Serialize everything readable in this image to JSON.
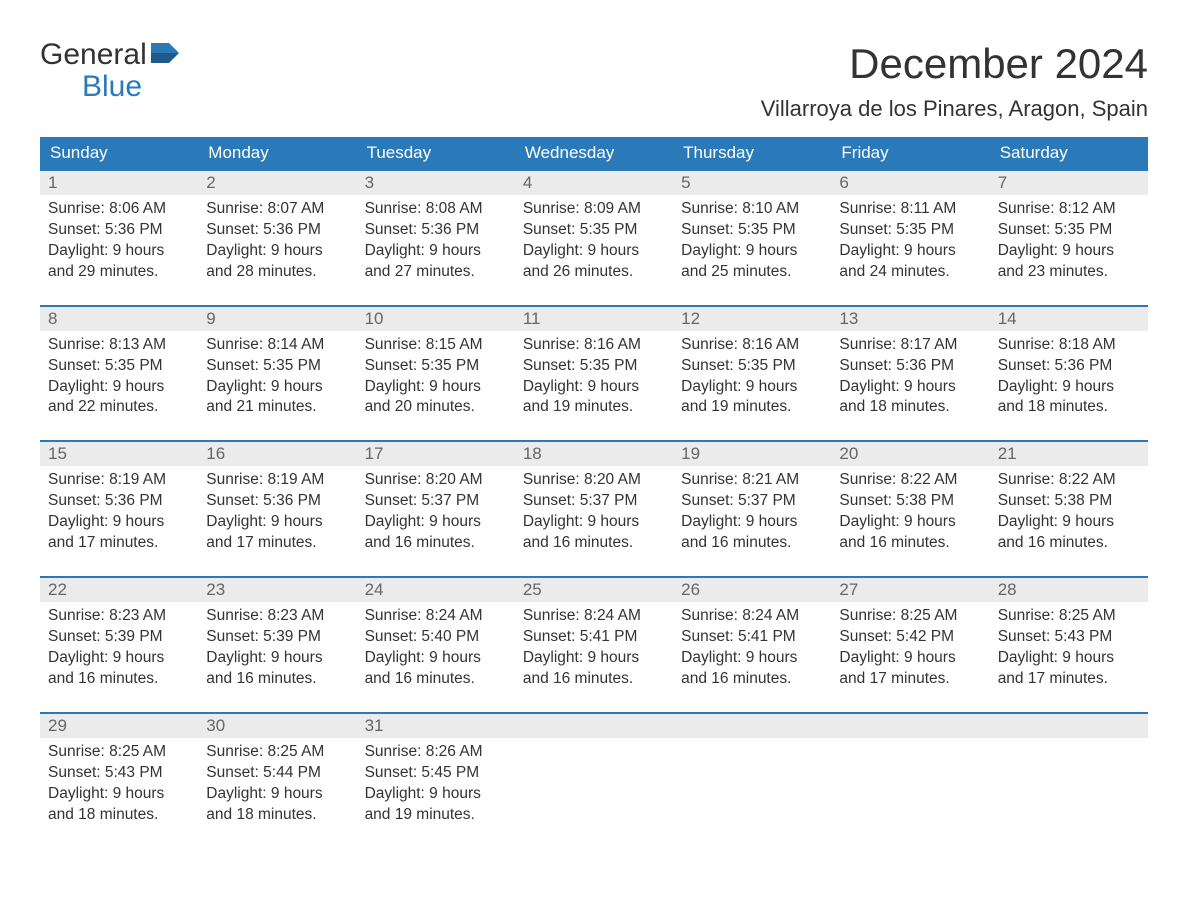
{
  "logo": {
    "text1": "General",
    "text2": "Blue"
  },
  "title": "December 2024",
  "location": "Villarroya de los Pinares, Aragon, Spain",
  "colors": {
    "header_bg": "#2a7ab9",
    "header_text": "#ffffff",
    "day_number_bg": "#ebebeb",
    "day_number_text": "#666666",
    "body_text": "#333333",
    "border": "#2a7ab9"
  },
  "daysOfWeek": [
    "Sunday",
    "Monday",
    "Tuesday",
    "Wednesday",
    "Thursday",
    "Friday",
    "Saturday"
  ],
  "weeks": [
    [
      {
        "day": "1",
        "sunrise": "Sunrise: 8:06 AM",
        "sunset": "Sunset: 5:36 PM",
        "daylight1": "Daylight: 9 hours",
        "daylight2": "and 29 minutes."
      },
      {
        "day": "2",
        "sunrise": "Sunrise: 8:07 AM",
        "sunset": "Sunset: 5:36 PM",
        "daylight1": "Daylight: 9 hours",
        "daylight2": "and 28 minutes."
      },
      {
        "day": "3",
        "sunrise": "Sunrise: 8:08 AM",
        "sunset": "Sunset: 5:36 PM",
        "daylight1": "Daylight: 9 hours",
        "daylight2": "and 27 minutes."
      },
      {
        "day": "4",
        "sunrise": "Sunrise: 8:09 AM",
        "sunset": "Sunset: 5:35 PM",
        "daylight1": "Daylight: 9 hours",
        "daylight2": "and 26 minutes."
      },
      {
        "day": "5",
        "sunrise": "Sunrise: 8:10 AM",
        "sunset": "Sunset: 5:35 PM",
        "daylight1": "Daylight: 9 hours",
        "daylight2": "and 25 minutes."
      },
      {
        "day": "6",
        "sunrise": "Sunrise: 8:11 AM",
        "sunset": "Sunset: 5:35 PM",
        "daylight1": "Daylight: 9 hours",
        "daylight2": "and 24 minutes."
      },
      {
        "day": "7",
        "sunrise": "Sunrise: 8:12 AM",
        "sunset": "Sunset: 5:35 PM",
        "daylight1": "Daylight: 9 hours",
        "daylight2": "and 23 minutes."
      }
    ],
    [
      {
        "day": "8",
        "sunrise": "Sunrise: 8:13 AM",
        "sunset": "Sunset: 5:35 PM",
        "daylight1": "Daylight: 9 hours",
        "daylight2": "and 22 minutes."
      },
      {
        "day": "9",
        "sunrise": "Sunrise: 8:14 AM",
        "sunset": "Sunset: 5:35 PM",
        "daylight1": "Daylight: 9 hours",
        "daylight2": "and 21 minutes."
      },
      {
        "day": "10",
        "sunrise": "Sunrise: 8:15 AM",
        "sunset": "Sunset: 5:35 PM",
        "daylight1": "Daylight: 9 hours",
        "daylight2": "and 20 minutes."
      },
      {
        "day": "11",
        "sunrise": "Sunrise: 8:16 AM",
        "sunset": "Sunset: 5:35 PM",
        "daylight1": "Daylight: 9 hours",
        "daylight2": "and 19 minutes."
      },
      {
        "day": "12",
        "sunrise": "Sunrise: 8:16 AM",
        "sunset": "Sunset: 5:35 PM",
        "daylight1": "Daylight: 9 hours",
        "daylight2": "and 19 minutes."
      },
      {
        "day": "13",
        "sunrise": "Sunrise: 8:17 AM",
        "sunset": "Sunset: 5:36 PM",
        "daylight1": "Daylight: 9 hours",
        "daylight2": "and 18 minutes."
      },
      {
        "day": "14",
        "sunrise": "Sunrise: 8:18 AM",
        "sunset": "Sunset: 5:36 PM",
        "daylight1": "Daylight: 9 hours",
        "daylight2": "and 18 minutes."
      }
    ],
    [
      {
        "day": "15",
        "sunrise": "Sunrise: 8:19 AM",
        "sunset": "Sunset: 5:36 PM",
        "daylight1": "Daylight: 9 hours",
        "daylight2": "and 17 minutes."
      },
      {
        "day": "16",
        "sunrise": "Sunrise: 8:19 AM",
        "sunset": "Sunset: 5:36 PM",
        "daylight1": "Daylight: 9 hours",
        "daylight2": "and 17 minutes."
      },
      {
        "day": "17",
        "sunrise": "Sunrise: 8:20 AM",
        "sunset": "Sunset: 5:37 PM",
        "daylight1": "Daylight: 9 hours",
        "daylight2": "and 16 minutes."
      },
      {
        "day": "18",
        "sunrise": "Sunrise: 8:20 AM",
        "sunset": "Sunset: 5:37 PM",
        "daylight1": "Daylight: 9 hours",
        "daylight2": "and 16 minutes."
      },
      {
        "day": "19",
        "sunrise": "Sunrise: 8:21 AM",
        "sunset": "Sunset: 5:37 PM",
        "daylight1": "Daylight: 9 hours",
        "daylight2": "and 16 minutes."
      },
      {
        "day": "20",
        "sunrise": "Sunrise: 8:22 AM",
        "sunset": "Sunset: 5:38 PM",
        "daylight1": "Daylight: 9 hours",
        "daylight2": "and 16 minutes."
      },
      {
        "day": "21",
        "sunrise": "Sunrise: 8:22 AM",
        "sunset": "Sunset: 5:38 PM",
        "daylight1": "Daylight: 9 hours",
        "daylight2": "and 16 minutes."
      }
    ],
    [
      {
        "day": "22",
        "sunrise": "Sunrise: 8:23 AM",
        "sunset": "Sunset: 5:39 PM",
        "daylight1": "Daylight: 9 hours",
        "daylight2": "and 16 minutes."
      },
      {
        "day": "23",
        "sunrise": "Sunrise: 8:23 AM",
        "sunset": "Sunset: 5:39 PM",
        "daylight1": "Daylight: 9 hours",
        "daylight2": "and 16 minutes."
      },
      {
        "day": "24",
        "sunrise": "Sunrise: 8:24 AM",
        "sunset": "Sunset: 5:40 PM",
        "daylight1": "Daylight: 9 hours",
        "daylight2": "and 16 minutes."
      },
      {
        "day": "25",
        "sunrise": "Sunrise: 8:24 AM",
        "sunset": "Sunset: 5:41 PM",
        "daylight1": "Daylight: 9 hours",
        "daylight2": "and 16 minutes."
      },
      {
        "day": "26",
        "sunrise": "Sunrise: 8:24 AM",
        "sunset": "Sunset: 5:41 PM",
        "daylight1": "Daylight: 9 hours",
        "daylight2": "and 16 minutes."
      },
      {
        "day": "27",
        "sunrise": "Sunrise: 8:25 AM",
        "sunset": "Sunset: 5:42 PM",
        "daylight1": "Daylight: 9 hours",
        "daylight2": "and 17 minutes."
      },
      {
        "day": "28",
        "sunrise": "Sunrise: 8:25 AM",
        "sunset": "Sunset: 5:43 PM",
        "daylight1": "Daylight: 9 hours",
        "daylight2": "and 17 minutes."
      }
    ],
    [
      {
        "day": "29",
        "sunrise": "Sunrise: 8:25 AM",
        "sunset": "Sunset: 5:43 PM",
        "daylight1": "Daylight: 9 hours",
        "daylight2": "and 18 minutes."
      },
      {
        "day": "30",
        "sunrise": "Sunrise: 8:25 AM",
        "sunset": "Sunset: 5:44 PM",
        "daylight1": "Daylight: 9 hours",
        "daylight2": "and 18 minutes."
      },
      {
        "day": "31",
        "sunrise": "Sunrise: 8:26 AM",
        "sunset": "Sunset: 5:45 PM",
        "daylight1": "Daylight: 9 hours",
        "daylight2": "and 19 minutes."
      },
      {
        "empty": true
      },
      {
        "empty": true
      },
      {
        "empty": true
      },
      {
        "empty": true
      }
    ]
  ]
}
